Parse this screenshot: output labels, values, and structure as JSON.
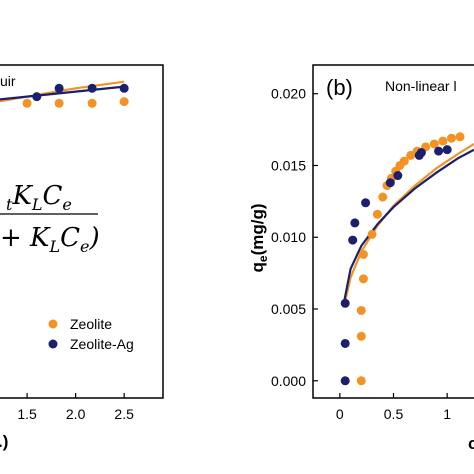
{
  "chart_data": [
    {
      "panel": "a",
      "type": "scatter",
      "title": "uir",
      "xlabel": ".)",
      "xlim": [
        0.5,
        2.9
      ],
      "ylim": [
        0.0,
        0.02
      ],
      "x_ticks": [
        "1.5",
        "2.0",
        "2.5"
      ],
      "x_tick_values": [
        1.5,
        2.0,
        2.5
      ],
      "formula_line1": " tK LC e",
      "formula_line2": "+ K LC e)",
      "legend": [
        "Zeolite",
        "Zeolite-Ag"
      ],
      "series": [
        {
          "name": "Zeolite",
          "color": "#f39323",
          "points": [
            [
              1.5,
              0.0177
            ],
            [
              1.83,
              0.0177
            ],
            [
              2.17,
              0.0177
            ],
            [
              2.5,
              0.0178
            ]
          ],
          "fit": [
            [
              0.5,
              0.017
            ],
            [
              1.0,
              0.0176
            ],
            [
              1.5,
              0.0181
            ],
            [
              2.0,
              0.0186
            ],
            [
              2.5,
              0.019
            ]
          ]
        },
        {
          "name": "Zeolite-Ag",
          "color": "#1c1f6e",
          "points": [
            [
              1.6,
              0.0181
            ],
            [
              1.83,
              0.0186
            ],
            [
              2.17,
              0.0186
            ],
            [
              2.5,
              0.0186
            ]
          ],
          "fit": [
            [
              0.5,
              0.0174
            ],
            [
              1.0,
              0.0178
            ],
            [
              1.5,
              0.0181
            ],
            [
              2.0,
              0.0184
            ],
            [
              2.5,
              0.0187
            ]
          ]
        }
      ]
    },
    {
      "panel": "b",
      "type": "scatter",
      "title": "Non-linear l",
      "panel_label": "(b)",
      "ylabel_main": "q",
      "ylabel_sub": "e",
      "ylabel_unit": "(mg/g)",
      "xlabel": "c",
      "xlim": [
        -0.25,
        1.25
      ],
      "ylim": [
        -0.0012,
        0.022
      ],
      "y_ticks": [
        "0.000",
        "0.005",
        "0.010",
        "0.015",
        "0.020"
      ],
      "y_tick_values": [
        0.0,
        0.005,
        0.01,
        0.015,
        0.02
      ],
      "x_ticks": [
        "0",
        "0.5",
        "1"
      ],
      "x_tick_values": [
        0.0,
        0.5,
        1.0
      ],
      "series": [
        {
          "name": "Zeolite",
          "color": "#f39323",
          "points": [
            [
              0.2,
              0.0
            ],
            [
              0.2,
              0.0031
            ],
            [
              0.2,
              0.0049
            ],
            [
              0.22,
              0.0071
            ],
            [
              0.22,
              0.0088
            ],
            [
              0.3,
              0.0102
            ],
            [
              0.35,
              0.0116
            ],
            [
              0.4,
              0.0128
            ],
            [
              0.44,
              0.0136
            ],
            [
              0.48,
              0.0141
            ],
            [
              0.52,
              0.0146
            ],
            [
              0.56,
              0.015
            ],
            [
              0.6,
              0.0153
            ],
            [
              0.66,
              0.0157
            ],
            [
              0.72,
              0.016
            ],
            [
              0.8,
              0.0163
            ],
            [
              0.88,
              0.0165
            ],
            [
              0.96,
              0.0167
            ],
            [
              1.04,
              0.0169
            ],
            [
              1.12,
              0.017
            ]
          ],
          "fit": [
            [
              0.04,
              0.0052
            ],
            [
              0.1,
              0.0072
            ],
            [
              0.2,
              0.009
            ],
            [
              0.35,
              0.0108
            ],
            [
              0.5,
              0.0122
            ],
            [
              0.7,
              0.0136
            ],
            [
              0.9,
              0.0148
            ],
            [
              1.1,
              0.0158
            ],
            [
              1.25,
              0.0165
            ]
          ]
        },
        {
          "name": "Zeolite-Ag",
          "color": "#1c1f6e",
          "points": [
            [
              0.05,
              0.0
            ],
            [
              0.05,
              0.0026
            ],
            [
              0.05,
              0.0054
            ],
            [
              0.12,
              0.0098
            ],
            [
              0.14,
              0.011
            ],
            [
              0.24,
              0.0124
            ],
            [
              0.47,
              0.0138
            ],
            [
              0.54,
              0.0143
            ],
            [
              0.74,
              0.0157
            ],
            [
              0.76,
              0.0159
            ],
            [
              0.92,
              0.016
            ],
            [
              1.0,
              0.0161
            ]
          ],
          "fit": [
            [
              0.04,
              0.0055
            ],
            [
              0.1,
              0.0078
            ],
            [
              0.2,
              0.0094
            ],
            [
              0.35,
              0.0109
            ],
            [
              0.5,
              0.0121
            ],
            [
              0.7,
              0.0134
            ],
            [
              0.9,
              0.0145
            ],
            [
              1.1,
              0.0155
            ],
            [
              1.25,
              0.0161
            ]
          ]
        }
      ]
    }
  ]
}
